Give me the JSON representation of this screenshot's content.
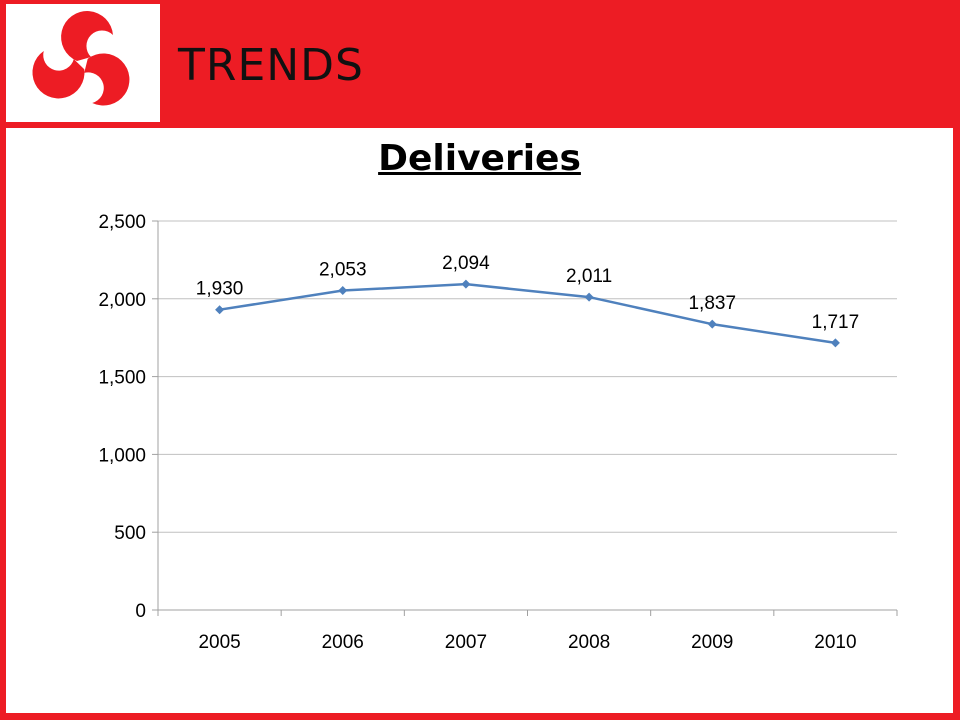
{
  "header": {
    "title": "TRENDS",
    "logo_icon": "tri-swirl-logo-icon",
    "brand_color": "#ED1C24"
  },
  "chart_data": {
    "type": "line",
    "title": "Deliveries",
    "categories": [
      "2005",
      "2006",
      "2007",
      "2008",
      "2009",
      "2010"
    ],
    "series": [
      {
        "values": [
          1930,
          2053,
          2094,
          2011,
          1837,
          1717
        ],
        "labels": [
          "1,930",
          "2,053",
          "2,094",
          "2,011",
          "1,837",
          "1,717"
        ],
        "color": "#4F81BD"
      }
    ],
    "ylim": [
      0,
      2500
    ],
    "yticks": [
      0,
      500,
      1000,
      1500,
      2000,
      2500
    ],
    "ytick_labels": [
      "0",
      "500",
      "1,000",
      "1,500",
      "2,000",
      "2,500"
    ],
    "xlabel": "",
    "ylabel": "",
    "grid": true,
    "legend": "none"
  }
}
